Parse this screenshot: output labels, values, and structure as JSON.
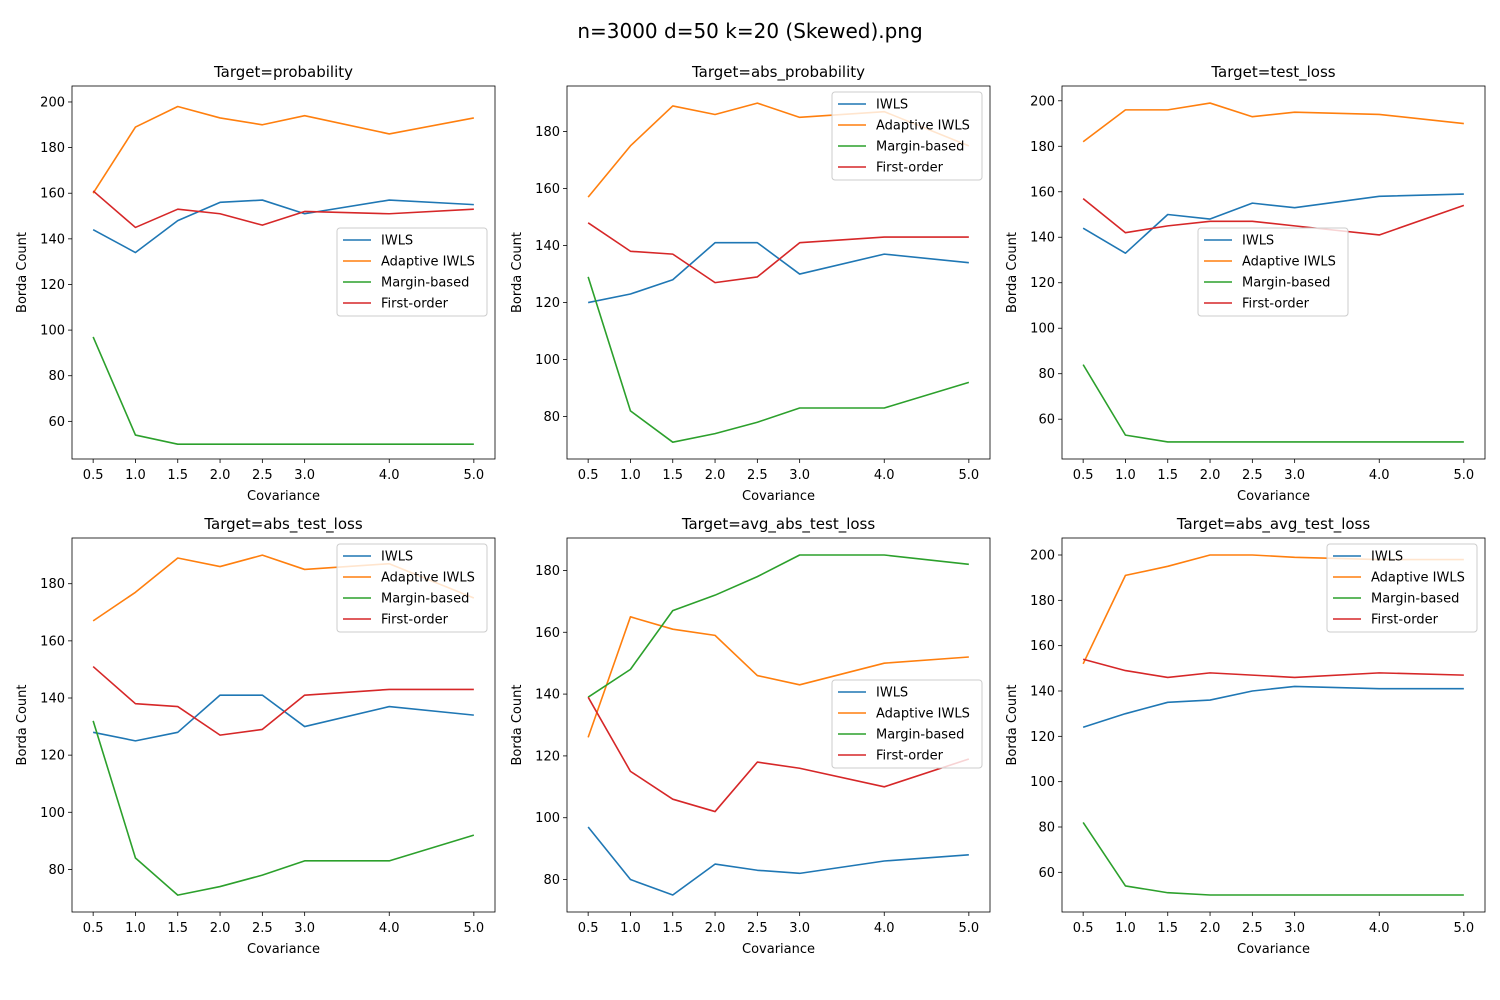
{
  "figure": {
    "title": "n=3000 d=50 k=20 (Skewed).png"
  },
  "colors": {
    "IWLS": "#1f77b4",
    "Adaptive IWLS": "#ff7f0e",
    "Margin-based": "#2ca02c",
    "First-order": "#d62728"
  },
  "chart_data": [
    {
      "type": "line",
      "title": "Target=probability",
      "xlabel": "Covariance",
      "ylabel": "Borda Count",
      "x": [
        0.5,
        1.0,
        1.5,
        2.0,
        2.5,
        3.0,
        4.0,
        5.0
      ],
      "xticks": [
        0.5,
        1.0,
        1.5,
        2.0,
        2.5,
        3.0,
        4.0,
        5.0
      ],
      "xlim": [
        0.25,
        5.25
      ],
      "ylim": [
        43.5,
        207
      ],
      "yticks": [
        60,
        80,
        100,
        120,
        140,
        160,
        180,
        200
      ],
      "legend": "center-right",
      "series": [
        {
          "name": "IWLS",
          "values": [
            144,
            134,
            148,
            156,
            157,
            151,
            157,
            155
          ]
        },
        {
          "name": "Adaptive IWLS",
          "values": [
            160,
            189,
            198,
            193,
            190,
            194,
            186,
            193
          ]
        },
        {
          "name": "Margin-based",
          "values": [
            97,
            54,
            50,
            50,
            50,
            50,
            50,
            50
          ]
        },
        {
          "name": "First-order",
          "values": [
            161,
            145,
            153,
            151,
            146,
            152,
            151,
            153
          ]
        }
      ]
    },
    {
      "type": "line",
      "title": "Target=abs_probability",
      "xlabel": "Covariance",
      "ylabel": "Borda Count",
      "x": [
        0.5,
        1.0,
        1.5,
        2.0,
        2.5,
        3.0,
        4.0,
        5.0
      ],
      "xticks": [
        0.5,
        1.0,
        1.5,
        2.0,
        2.5,
        3.0,
        4.0,
        5.0
      ],
      "xlim": [
        0.25,
        5.25
      ],
      "ylim": [
        65.1,
        196
      ],
      "yticks": [
        80,
        100,
        120,
        140,
        160,
        180
      ],
      "legend": "top-right",
      "series": [
        {
          "name": "IWLS",
          "values": [
            120,
            123,
            128,
            141,
            141,
            130,
            137,
            134
          ]
        },
        {
          "name": "Adaptive IWLS",
          "values": [
            157,
            175,
            189,
            186,
            190,
            185,
            187,
            175
          ]
        },
        {
          "name": "Margin-based",
          "values": [
            129,
            82,
            71,
            74,
            78,
            83,
            83,
            92
          ]
        },
        {
          "name": "First-order",
          "values": [
            148,
            138,
            137,
            127,
            129,
            141,
            143,
            143
          ]
        }
      ]
    },
    {
      "type": "line",
      "title": "Target=test_loss",
      "xlabel": "Covariance",
      "ylabel": "Borda Count",
      "x": [
        0.5,
        1.0,
        1.5,
        2.0,
        2.5,
        3.0,
        4.0,
        5.0
      ],
      "xticks": [
        0.5,
        1.0,
        1.5,
        2.0,
        2.5,
        3.0,
        4.0,
        5.0
      ],
      "xlim": [
        0.25,
        5.25
      ],
      "ylim": [
        42.5,
        206.5
      ],
      "yticks": [
        60,
        80,
        100,
        120,
        140,
        160,
        180,
        200
      ],
      "legend": "center",
      "series": [
        {
          "name": "IWLS",
          "values": [
            144,
            133,
            150,
            148,
            155,
            153,
            158,
            159
          ]
        },
        {
          "name": "Adaptive IWLS",
          "values": [
            182,
            196,
            196,
            199,
            193,
            195,
            194,
            190
          ]
        },
        {
          "name": "Margin-based",
          "values": [
            84,
            53,
            50,
            50,
            50,
            50,
            50,
            50
          ]
        },
        {
          "name": "First-order",
          "values": [
            157,
            142,
            145,
            147,
            147,
            145,
            141,
            154
          ]
        }
      ]
    },
    {
      "type": "line",
      "title": "Target=abs_test_loss",
      "xlabel": "Covariance",
      "ylabel": "Borda Count",
      "x": [
        0.5,
        1.0,
        1.5,
        2.0,
        2.5,
        3.0,
        4.0,
        5.0
      ],
      "xticks": [
        0.5,
        1.0,
        1.5,
        2.0,
        2.5,
        3.0,
        4.0,
        5.0
      ],
      "xlim": [
        0.25,
        5.25
      ],
      "ylim": [
        65.1,
        196
      ],
      "yticks": [
        80,
        100,
        120,
        140,
        160,
        180
      ],
      "legend": "top-right",
      "series": [
        {
          "name": "IWLS",
          "values": [
            128,
            125,
            128,
            141,
            141,
            130,
            137,
            134
          ]
        },
        {
          "name": "Adaptive IWLS",
          "values": [
            167,
            177,
            189,
            186,
            190,
            185,
            187,
            175
          ]
        },
        {
          "name": "Margin-based",
          "values": [
            132,
            84,
            71,
            74,
            78,
            83,
            83,
            92
          ]
        },
        {
          "name": "First-order",
          "values": [
            151,
            138,
            137,
            127,
            129,
            141,
            143,
            143
          ]
        }
      ]
    },
    {
      "type": "line",
      "title": "Target=avg_abs_test_loss",
      "xlabel": "Covariance",
      "ylabel": "Borda Count",
      "x": [
        0.5,
        1.0,
        1.5,
        2.0,
        2.5,
        3.0,
        4.0,
        5.0
      ],
      "xticks": [
        0.5,
        1.0,
        1.5,
        2.0,
        2.5,
        3.0,
        4.0,
        5.0
      ],
      "xlim": [
        0.25,
        5.25
      ],
      "ylim": [
        69.5,
        190.5
      ],
      "yticks": [
        80,
        100,
        120,
        140,
        160,
        180
      ],
      "legend": "center-right",
      "series": [
        {
          "name": "IWLS",
          "values": [
            97,
            80,
            75,
            85,
            83,
            82,
            86,
            88
          ]
        },
        {
          "name": "Adaptive IWLS",
          "values": [
            126,
            165,
            161,
            159,
            146,
            143,
            150,
            152
          ]
        },
        {
          "name": "Margin-based",
          "values": [
            139,
            148,
            167,
            172,
            178,
            185,
            185,
            182
          ]
        },
        {
          "name": "First-order",
          "values": [
            139,
            115,
            106,
            102,
            118,
            116,
            110,
            119
          ]
        }
      ]
    },
    {
      "type": "line",
      "title": "Target=abs_avg_test_loss",
      "xlabel": "Covariance",
      "ylabel": "Borda Count",
      "x": [
        0.5,
        1.0,
        1.5,
        2.0,
        2.5,
        3.0,
        4.0,
        5.0
      ],
      "xticks": [
        0.5,
        1.0,
        1.5,
        2.0,
        2.5,
        3.0,
        4.0,
        5.0
      ],
      "xlim": [
        0.25,
        5.25
      ],
      "ylim": [
        42.5,
        207.5
      ],
      "yticks": [
        60,
        80,
        100,
        120,
        140,
        160,
        180,
        200
      ],
      "legend": "top-right",
      "series": [
        {
          "name": "IWLS",
          "values": [
            124,
            130,
            135,
            136,
            140,
            142,
            141,
            141
          ]
        },
        {
          "name": "Adaptive IWLS",
          "values": [
            152,
            191,
            195,
            200,
            200,
            199,
            198,
            198
          ]
        },
        {
          "name": "Margin-based",
          "values": [
            82,
            54,
            51,
            50,
            50,
            50,
            50,
            50
          ]
        },
        {
          "name": "First-order",
          "values": [
            154,
            149,
            146,
            148,
            147,
            146,
            148,
            147
          ]
        }
      ]
    }
  ]
}
